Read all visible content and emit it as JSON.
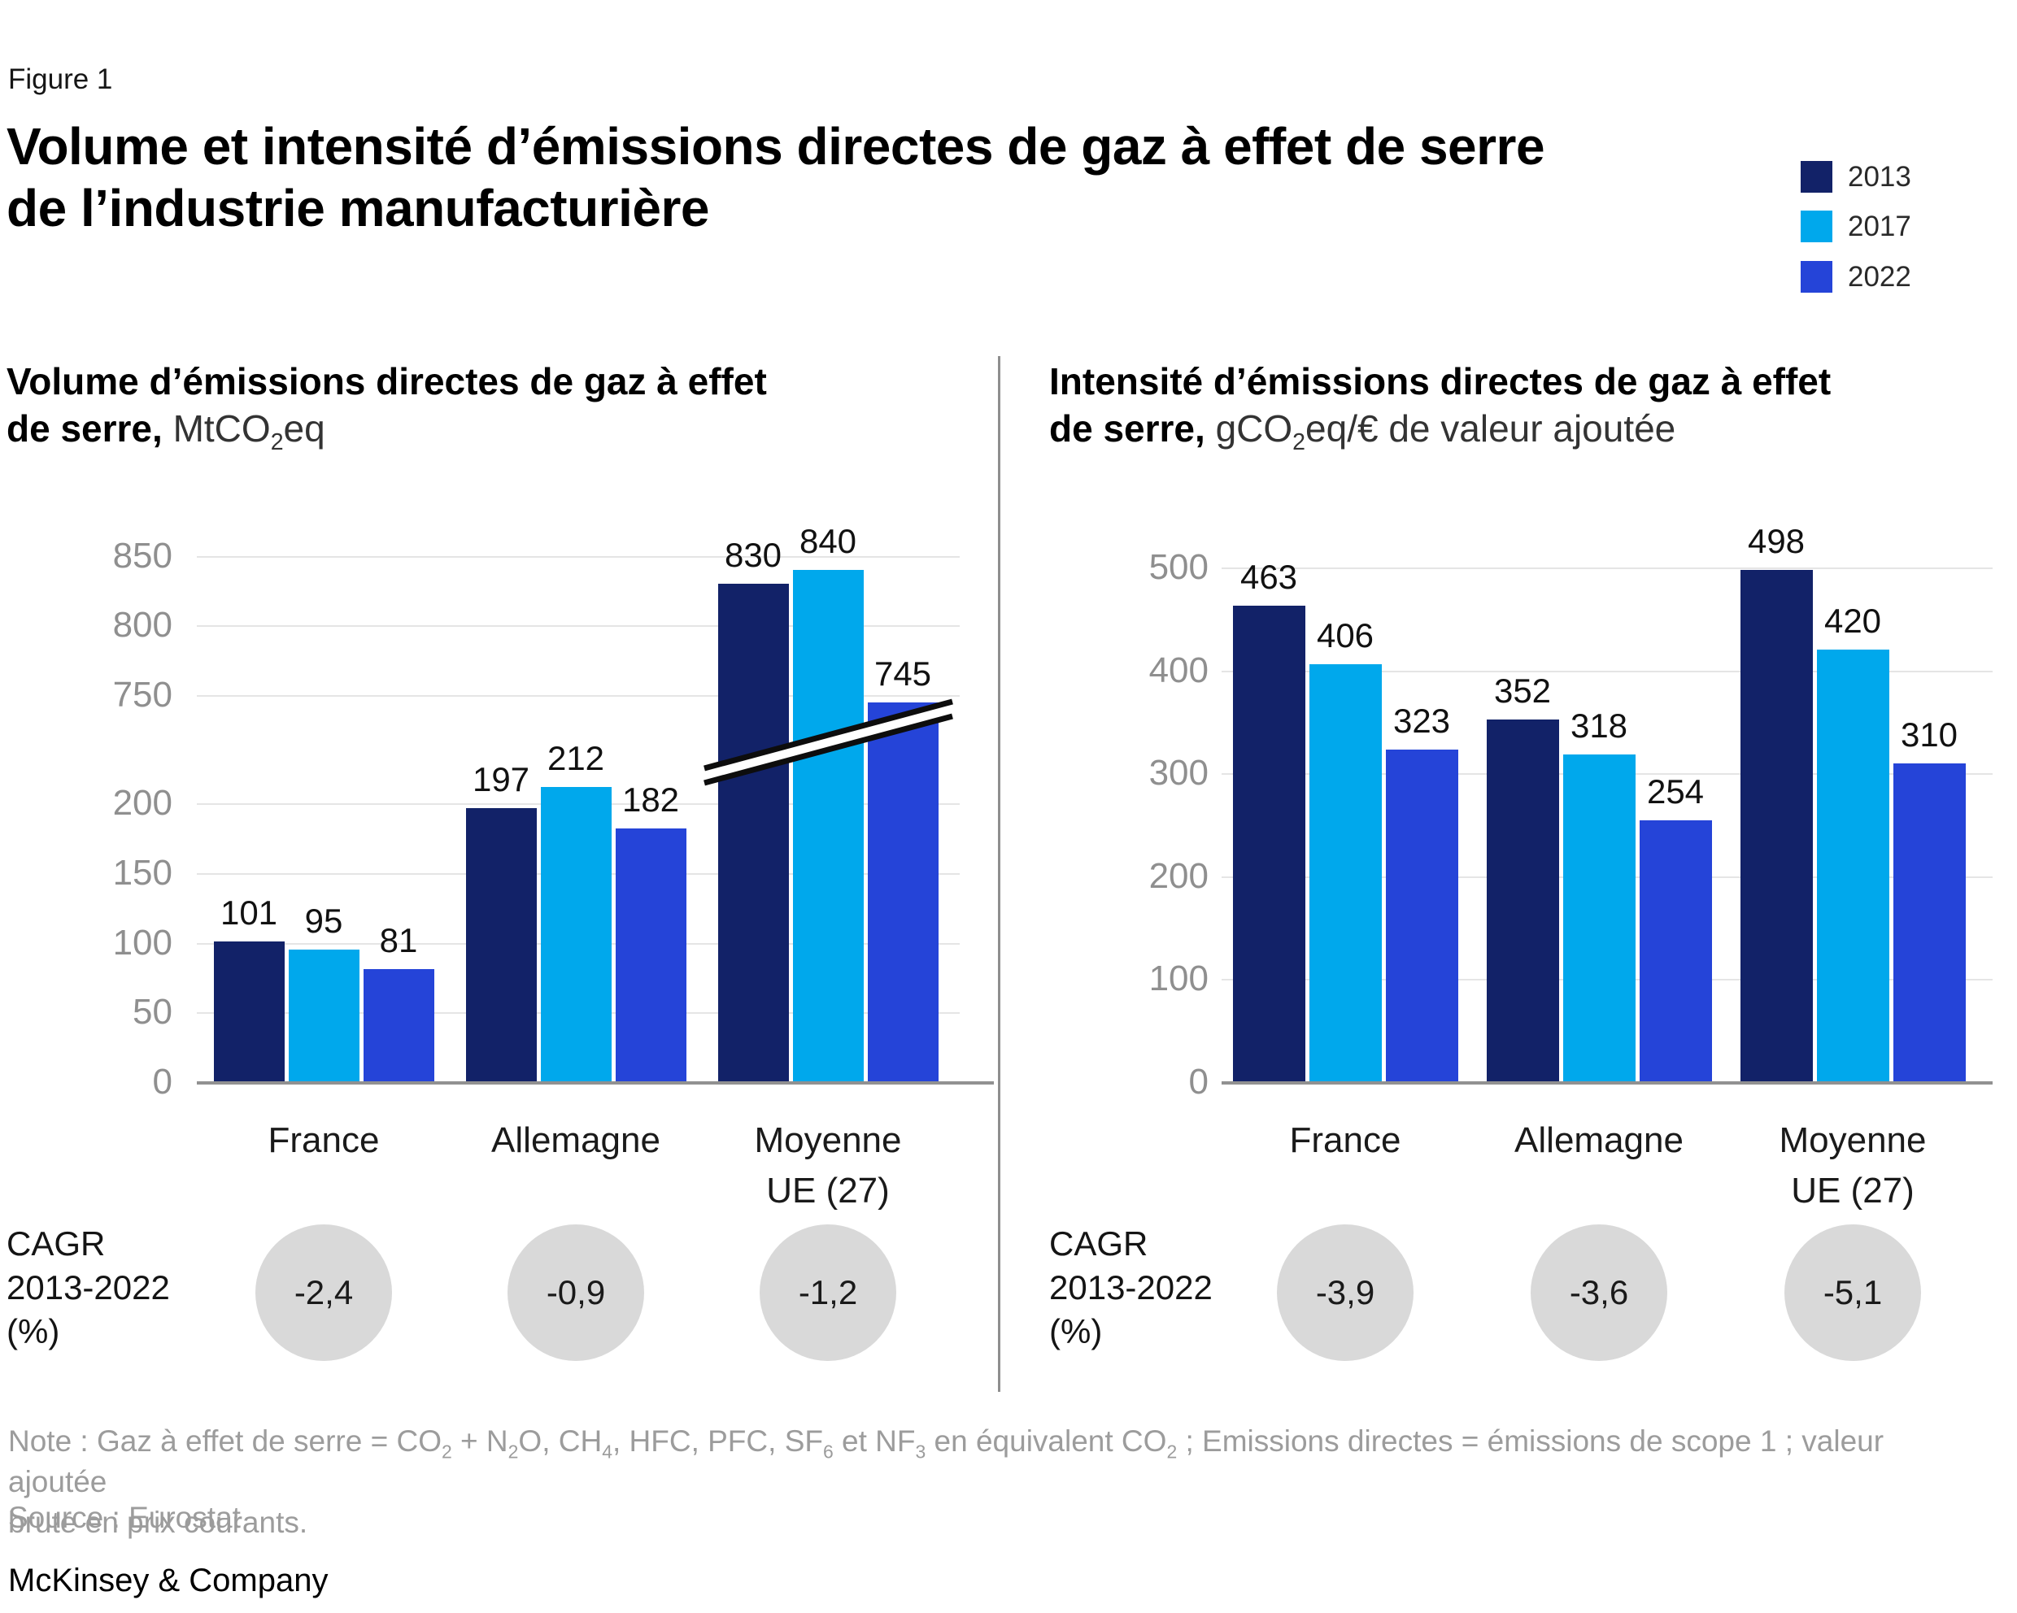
{
  "figure_label": "Figure 1",
  "title": {
    "line1": "Volume et intensité d’émissions directes de gaz à effet de serre",
    "line2": "de l’industrie manufacturière"
  },
  "legend": {
    "position": "top-right",
    "items": [
      {
        "label": "2013",
        "color": "#122268"
      },
      {
        "label": "2017",
        "color": "#00a8ec"
      },
      {
        "label": "2022",
        "color": "#2544d8"
      }
    ]
  },
  "chart_data": [
    {
      "type": "bar",
      "panel": "left",
      "title_bold": [
        "Volume d’émissions directes de gaz à effet",
        "de serre,"
      ],
      "unit_parts": [
        {
          "t": " MtCO"
        },
        {
          "sub": "2"
        },
        {
          "t": "eq"
        }
      ],
      "categories": [
        "France",
        "Allemagne",
        "Moyenne\nUE (27)"
      ],
      "series": [
        {
          "name": "2013",
          "values": [
            101,
            197,
            830
          ]
        },
        {
          "name": "2017",
          "values": [
            95,
            212,
            840
          ]
        },
        {
          "name": "2022",
          "values": [
            81,
            182,
            745
          ]
        }
      ],
      "yticks": [
        0,
        50,
        100,
        150,
        200,
        750,
        800,
        850
      ],
      "axis_break": true,
      "ylim_segments": [
        [
          0,
          225
        ],
        [
          735,
          860
        ]
      ],
      "grid": true,
      "legend_ref": [
        "2013",
        "2017",
        "2022"
      ],
      "cagr": {
        "label_lines": [
          "CAGR",
          "2013-2022",
          "(%)"
        ],
        "values": [
          "-2,4",
          "-0,9",
          "-1,2"
        ]
      }
    },
    {
      "type": "bar",
      "panel": "right",
      "title_bold": [
        "Intensité d’émissions directes de gaz à effet",
        "de serre,"
      ],
      "unit_parts": [
        {
          "t": " gCO"
        },
        {
          "sub": "2"
        },
        {
          "t": "eq/€ de valeur ajoutée"
        }
      ],
      "categories": [
        "France",
        "Allemagne",
        "Moyenne\nUE (27)"
      ],
      "series": [
        {
          "name": "2013",
          "values": [
            463,
            352,
            498
          ]
        },
        {
          "name": "2017",
          "values": [
            406,
            318,
            420
          ]
        },
        {
          "name": "2022",
          "values": [
            323,
            254,
            310
          ]
        }
      ],
      "yticks": [
        0,
        100,
        200,
        300,
        400,
        500
      ],
      "axis_break": false,
      "ylim": [
        0,
        500
      ],
      "grid": true,
      "legend_ref": [
        "2013",
        "2017",
        "2022"
      ],
      "cagr": {
        "label_lines": [
          "CAGR",
          "2013-2022",
          "(%)"
        ],
        "values": [
          "-3,9",
          "-3,6",
          "-5,1"
        ]
      }
    }
  ],
  "styles": {
    "grid_color": "#e5e5e5",
    "baseline_color": "#919191",
    "tick_color": "#8f8f8f",
    "value_color": "#111111",
    "category_color": "#1a1a1a",
    "circle_color": "#d9d9d9",
    "circle_text_color": "#1a1a1a",
    "divider_color": "#8f8f8f",
    "note_color": "#9c9c9c",
    "break_line_color": "#0d0d0d"
  },
  "note": {
    "line1_parts": [
      {
        "t": "Note : Gaz à effet de serre = CO"
      },
      {
        "sub": "2"
      },
      {
        "t": " + N"
      },
      {
        "sub": "2"
      },
      {
        "t": "O, CH"
      },
      {
        "sub": "4"
      },
      {
        "t": ", HFC, PFC, SF"
      },
      {
        "sub": "6"
      },
      {
        "t": " et NF"
      },
      {
        "sub": "3"
      },
      {
        "t": " en équivalent CO"
      },
      {
        "sub": "2"
      },
      {
        "t": " ; Emissions directes = émissions de scope 1 ; valeur ajoutée"
      }
    ],
    "line2": "brute en prix courants."
  },
  "source": "Source : Eurostat",
  "brand": "McKinsey & Company"
}
